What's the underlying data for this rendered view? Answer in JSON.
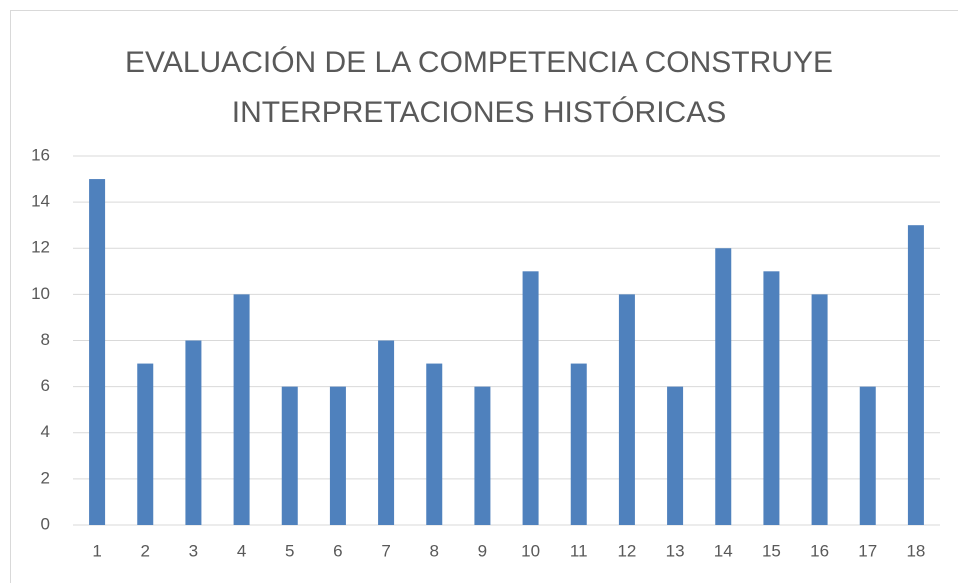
{
  "chart_data": {
    "type": "bar",
    "title": "EVALUACIÓN DE LA COMPETENCIA CONSTRUYE INTERPRETACIONES HISTÓRICAS",
    "categories": [
      "1",
      "2",
      "3",
      "4",
      "5",
      "6",
      "7",
      "8",
      "9",
      "10",
      "11",
      "12",
      "13",
      "14",
      "15",
      "16",
      "17",
      "18"
    ],
    "values": [
      15,
      7,
      8,
      10,
      6,
      6,
      8,
      7,
      6,
      11,
      7,
      10,
      6,
      12,
      11,
      10,
      6,
      13
    ],
    "color": "#4f81bd",
    "ylim": [
      0,
      16
    ],
    "yticks": [
      0,
      2,
      4,
      6,
      8,
      10,
      12,
      14,
      16
    ],
    "grid": true
  }
}
